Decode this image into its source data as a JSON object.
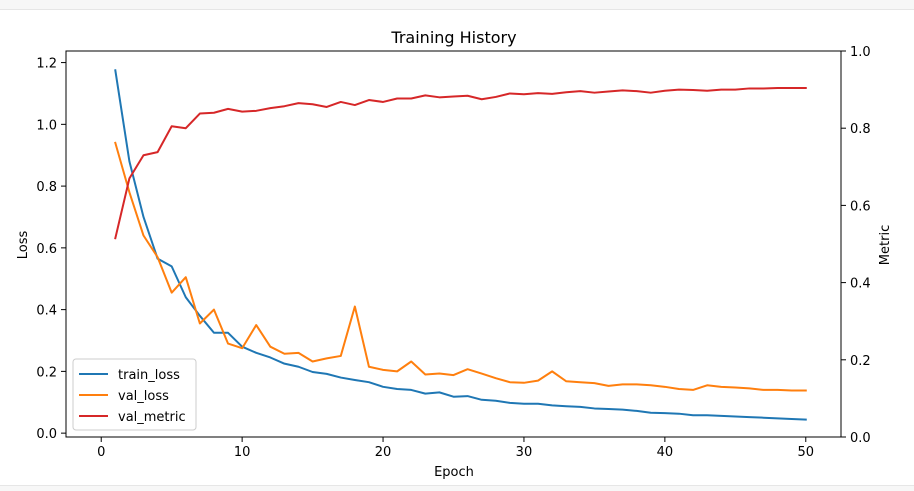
{
  "chart_data": {
    "type": "line",
    "title": "Training History",
    "xlabel": "Epoch",
    "ylabel": "Loss",
    "y2label": "Metric",
    "xlim": [
      -2.5,
      52.5
    ],
    "ylim": [
      -0.0125,
      1.2375
    ],
    "y2lim": [
      0.0,
      1.0
    ],
    "xticks": [
      0,
      10,
      20,
      30,
      40,
      50
    ],
    "xtick_labels": [
      "0",
      "10",
      "20",
      "30",
      "40",
      "50"
    ],
    "yticks": [
      0.0,
      0.2,
      0.4,
      0.6,
      0.8,
      1.0,
      1.2
    ],
    "ytick_labels": [
      "0.0",
      "0.2",
      "0.4",
      "0.6",
      "0.8",
      "1.0",
      "1.2"
    ],
    "y2ticks": [
      0.0,
      0.2,
      0.4,
      0.6,
      0.8,
      1.0
    ],
    "y2tick_labels": [
      "0.0",
      "0.2",
      "0.4",
      "0.6",
      "0.8",
      "1.0"
    ],
    "grid": false,
    "legend_position": "lower-left",
    "x": [
      1,
      2,
      3,
      4,
      5,
      6,
      7,
      8,
      9,
      10,
      11,
      12,
      13,
      14,
      15,
      16,
      17,
      18,
      19,
      20,
      21,
      22,
      23,
      24,
      25,
      26,
      27,
      28,
      29,
      30,
      31,
      32,
      33,
      34,
      35,
      36,
      37,
      38,
      39,
      40,
      41,
      42,
      43,
      44,
      45,
      46,
      47,
      48,
      49,
      50
    ],
    "series": [
      {
        "name": "train_loss",
        "axis": "left",
        "color": "#1f77b4",
        "values": [
          1.175,
          0.88,
          0.7,
          0.565,
          0.54,
          0.44,
          0.38,
          0.325,
          0.325,
          0.28,
          0.26,
          0.245,
          0.225,
          0.215,
          0.198,
          0.192,
          0.18,
          0.172,
          0.165,
          0.15,
          0.143,
          0.14,
          0.128,
          0.132,
          0.118,
          0.12,
          0.108,
          0.105,
          0.098,
          0.095,
          0.095,
          0.09,
          0.087,
          0.085,
          0.08,
          0.078,
          0.076,
          0.072,
          0.066,
          0.065,
          0.063,
          0.058,
          0.058,
          0.056,
          0.054,
          0.052,
          0.05,
          0.048,
          0.046,
          0.044
        ]
      },
      {
        "name": "val_loss",
        "axis": "left",
        "color": "#ff7f0e",
        "values": [
          0.94,
          0.78,
          0.64,
          0.57,
          0.455,
          0.505,
          0.355,
          0.4,
          0.29,
          0.275,
          0.35,
          0.28,
          0.257,
          0.26,
          0.232,
          0.242,
          0.25,
          0.41,
          0.215,
          0.205,
          0.2,
          0.232,
          0.19,
          0.193,
          0.188,
          0.207,
          0.193,
          0.178,
          0.165,
          0.163,
          0.17,
          0.2,
          0.168,
          0.165,
          0.162,
          0.153,
          0.158,
          0.158,
          0.155,
          0.15,
          0.143,
          0.14,
          0.155,
          0.15,
          0.148,
          0.145,
          0.14,
          0.14,
          0.138,
          0.138
        ]
      },
      {
        "name": "val_metric",
        "axis": "right",
        "color": "#d62728",
        "values": [
          0.515,
          0.67,
          0.73,
          0.738,
          0.805,
          0.8,
          0.838,
          0.84,
          0.85,
          0.843,
          0.845,
          0.852,
          0.857,
          0.865,
          0.862,
          0.855,
          0.868,
          0.86,
          0.873,
          0.868,
          0.877,
          0.877,
          0.885,
          0.88,
          0.882,
          0.884,
          0.875,
          0.881,
          0.89,
          0.888,
          0.891,
          0.889,
          0.893,
          0.896,
          0.892,
          0.895,
          0.898,
          0.896,
          0.892,
          0.897,
          0.9,
          0.899,
          0.897,
          0.9,
          0.9,
          0.903,
          0.903,
          0.904,
          0.904,
          0.904
        ]
      }
    ]
  }
}
